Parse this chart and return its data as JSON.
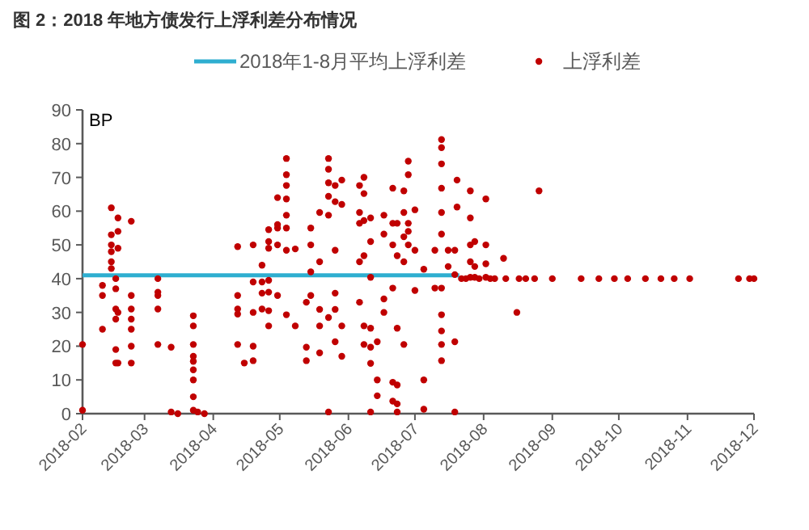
{
  "chart_data": {
    "type": "scatter",
    "title": "图 2：2018 年地方债发行上浮利差分布情况",
    "ylabel": "BP",
    "xlim": [
      "2018-02-01",
      "2018-12-01"
    ],
    "xticks": [
      {
        "value": "2018-02-01",
        "label": "2018-02"
      },
      {
        "value": "2018-03-01",
        "label": "2018-03"
      },
      {
        "value": "2018-04-01",
        "label": "2018-04"
      },
      {
        "value": "2018-05-01",
        "label": "2018-05"
      },
      {
        "value": "2018-06-01",
        "label": "2018-06"
      },
      {
        "value": "2018-07-01",
        "label": "2018-07"
      },
      {
        "value": "2018-08-01",
        "label": "2018-08"
      },
      {
        "value": "2018-09-01",
        "label": "2018-09"
      },
      {
        "value": "2018-10-01",
        "label": "2018-10"
      },
      {
        "value": "2018-11-01",
        "label": "2018-11"
      },
      {
        "value": "2018-12-01",
        "label": "2018-12"
      }
    ],
    "ylim": [
      0,
      90
    ],
    "yticks": [
      0,
      10,
      20,
      30,
      40,
      50,
      60,
      70,
      80,
      90
    ],
    "grid": false,
    "legend": "top",
    "series": [
      {
        "name": "2018年1-8月平均上浮利差",
        "type": "line",
        "color": "#2eaed0",
        "line_style": "solid",
        "x": [
          "2018-02-01",
          "2018-07-21"
        ],
        "values": [
          41,
          41
        ]
      },
      {
        "name": "上浮利差",
        "marker": "circle",
        "color": "#c00000",
        "x": [
          "2018-02-01",
          "2018-02-01",
          "2018-02-10",
          "2018-02-10",
          "2018-02-10",
          "2018-02-14",
          "2018-02-14",
          "2018-02-14",
          "2018-02-14",
          "2018-02-14",
          "2018-02-14",
          "2018-02-16",
          "2018-02-16",
          "2018-02-16",
          "2018-02-16",
          "2018-02-16",
          "2018-02-16",
          "2018-02-17",
          "2018-02-17",
          "2018-02-17",
          "2018-02-17",
          "2018-02-17",
          "2018-02-23",
          "2018-02-23",
          "2018-02-23",
          "2018-02-23",
          "2018-02-23",
          "2018-02-23",
          "2018-02-23",
          "2018-03-07",
          "2018-03-07",
          "2018-03-07",
          "2018-03-07",
          "2018-03-07",
          "2018-03-13",
          "2018-03-13",
          "2018-03-16",
          "2018-03-23",
          "2018-03-23",
          "2018-03-23",
          "2018-03-23",
          "2018-03-23",
          "2018-03-23",
          "2018-03-23",
          "2018-03-23",
          "2018-03-23",
          "2018-03-25",
          "2018-03-28",
          "2018-04-12",
          "2018-04-12",
          "2018-04-12",
          "2018-04-12",
          "2018-04-12",
          "2018-04-15",
          "2018-04-19",
          "2018-04-19",
          "2018-04-19",
          "2018-04-19",
          "2018-04-19",
          "2018-04-23",
          "2018-04-23",
          "2018-04-23",
          "2018-04-23",
          "2018-04-26",
          "2018-04-26",
          "2018-04-26",
          "2018-04-26",
          "2018-04-26",
          "2018-04-26",
          "2018-04-26",
          "2018-04-30",
          "2018-04-30",
          "2018-04-30",
          "2018-04-30",
          "2018-04-30",
          "2018-05-04",
          "2018-05-04",
          "2018-05-04",
          "2018-05-04",
          "2018-05-04",
          "2018-05-04",
          "2018-05-04",
          "2018-05-04",
          "2018-05-08",
          "2018-05-08",
          "2018-05-13",
          "2018-05-13",
          "2018-05-13",
          "2018-05-15",
          "2018-05-15",
          "2018-05-15",
          "2018-05-15",
          "2018-05-19",
          "2018-05-19",
          "2018-05-19",
          "2018-05-19",
          "2018-05-19",
          "2018-05-23",
          "2018-05-23",
          "2018-05-23",
          "2018-05-23",
          "2018-05-23",
          "2018-05-23",
          "2018-05-23",
          "2018-05-26",
          "2018-05-26",
          "2018-05-26",
          "2018-05-26",
          "2018-05-26",
          "2018-05-26",
          "2018-05-29",
          "2018-05-29",
          "2018-05-29",
          "2018-05-29",
          "2018-06-06",
          "2018-06-06",
          "2018-06-06",
          "2018-06-06",
          "2018-06-06",
          "2018-06-08",
          "2018-06-08",
          "2018-06-08",
          "2018-06-08",
          "2018-06-08",
          "2018-06-08",
          "2018-06-11",
          "2018-06-11",
          "2018-06-11",
          "2018-06-11",
          "2018-06-11",
          "2018-06-11",
          "2018-06-11",
          "2018-06-14",
          "2018-06-14",
          "2018-06-14",
          "2018-06-17",
          "2018-06-17",
          "2018-06-17",
          "2018-06-17",
          "2018-06-21",
          "2018-06-21",
          "2018-06-21",
          "2018-06-21",
          "2018-06-21",
          "2018-06-21",
          "2018-06-23",
          "2018-06-23",
          "2018-06-23",
          "2018-06-23",
          "2018-06-23",
          "2018-06-23",
          "2018-06-26",
          "2018-06-26",
          "2018-06-26",
          "2018-06-26",
          "2018-06-26",
          "2018-06-28",
          "2018-06-28",
          "2018-06-28",
          "2018-06-28",
          "2018-06-28",
          "2018-07-01",
          "2018-07-01",
          "2018-07-01",
          "2018-07-05",
          "2018-07-05",
          "2018-07-05",
          "2018-07-10",
          "2018-07-10",
          "2018-07-13",
          "2018-07-13",
          "2018-07-13",
          "2018-07-13",
          "2018-07-13",
          "2018-07-13",
          "2018-07-13",
          "2018-07-13",
          "2018-07-13",
          "2018-07-13",
          "2018-07-13",
          "2018-07-16",
          "2018-07-16",
          "2018-07-19",
          "2018-07-19",
          "2018-07-19",
          "2018-07-19",
          "2018-07-20",
          "2018-07-20",
          "2018-07-22",
          "2018-07-24",
          "2018-07-26",
          "2018-07-26",
          "2018-07-26",
          "2018-07-26",
          "2018-07-26",
          "2018-07-28",
          "2018-07-28",
          "2018-07-28",
          "2018-07-30",
          "2018-08-02",
          "2018-08-02",
          "2018-08-02",
          "2018-08-02",
          "2018-08-04",
          "2018-08-06",
          "2018-08-10",
          "2018-08-11",
          "2018-08-16",
          "2018-08-17",
          "2018-08-20",
          "2018-08-24",
          "2018-08-26",
          "2018-09-01",
          "2018-09-14",
          "2018-09-22",
          "2018-09-29",
          "2018-10-05",
          "2018-10-13",
          "2018-10-20",
          "2018-10-26",
          "2018-11-02",
          "2018-11-24",
          "2018-11-29",
          "2018-12-01"
        ],
        "values": [
          20.5,
          1,
          38,
          35,
          25,
          61,
          53,
          50,
          48,
          45,
          43,
          40,
          37,
          31,
          28,
          19,
          15,
          58,
          54,
          49,
          30,
          15,
          57,
          35,
          31,
          28,
          25,
          20,
          15,
          40,
          36,
          35,
          31,
          20.5,
          0.5,
          19.7,
          0,
          29,
          26,
          20.5,
          17,
          15.5,
          13,
          10,
          5,
          1,
          0.5,
          0,
          49.5,
          35,
          31,
          29.5,
          20.5,
          15,
          50,
          39,
          30,
          20,
          15.7,
          44,
          39,
          35.7,
          31,
          54.5,
          51,
          49,
          39.5,
          36,
          30.5,
          26,
          64,
          56,
          55,
          50,
          35,
          75.6,
          70.8,
          67.6,
          63.6,
          58.8,
          55,
          48.4,
          29.3,
          48.8,
          26,
          33,
          19.7,
          15.7,
          55,
          50,
          42,
          35,
          59.6,
          45,
          30.9,
          26,
          18,
          75.6,
          72.4,
          68.4,
          64.4,
          58.8,
          28.5,
          0.5,
          67.6,
          62.8,
          48.4,
          35.7,
          30.9,
          21.3,
          69.2,
          62,
          26,
          17,
          67.6,
          59.6,
          56.4,
          45,
          33,
          70,
          65.2,
          57.2,
          46.8,
          26,
          20.5,
          58,
          51,
          40.4,
          25.3,
          19.7,
          14.9,
          0.5,
          21.3,
          10,
          5.3,
          58.8,
          53.2,
          34,
          30,
          66.8,
          56.4,
          50,
          37.2,
          9.3,
          3.7,
          56.4,
          46.8,
          25.3,
          8.5,
          2.9,
          0.5,
          66,
          59.6,
          52.4,
          45,
          20.5,
          74.8,
          70.8,
          56.4,
          54,
          50,
          60.4,
          48.4,
          36.5,
          42.8,
          10,
          1.3,
          48.4,
          37.2,
          81.2,
          78.8,
          74,
          66.8,
          59.6,
          53.2,
          37.2,
          29.3,
          24.5,
          20.5,
          15.7,
          48.4,
          43.6,
          48.4,
          41.2,
          21.3,
          0.5,
          69.2,
          61.2,
          40,
          40,
          66,
          58,
          50,
          45,
          40.4,
          51,
          43.6,
          40.4,
          40,
          63.6,
          50,
          44.4,
          40.4,
          40,
          40,
          46,
          40,
          30,
          40,
          40,
          40,
          66,
          40,
          40,
          40,
          40,
          40,
          40,
          40,
          40,
          40,
          40,
          40,
          40
        ]
      }
    ]
  }
}
